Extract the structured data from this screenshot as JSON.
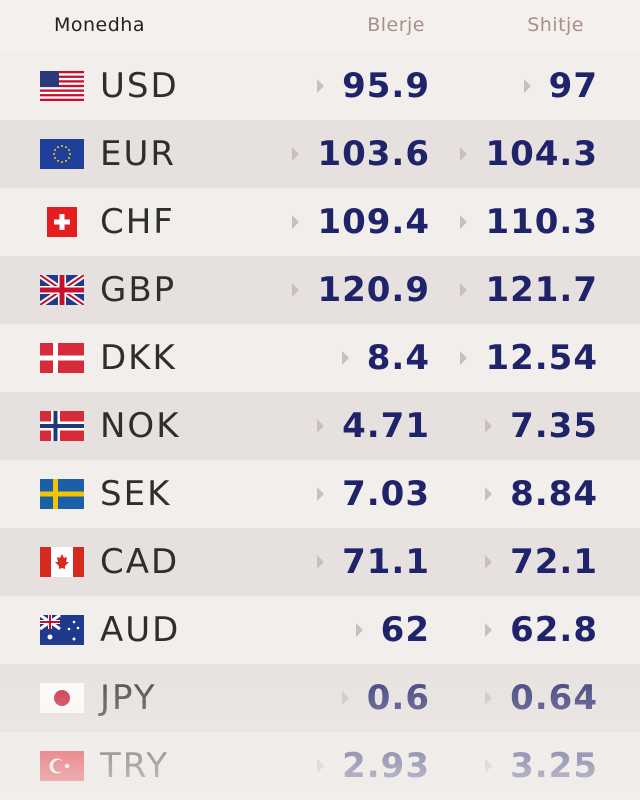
{
  "header": {
    "currency": "Monedha",
    "buy": "Blerje",
    "sell": "Shitje"
  },
  "rows": [
    [
      "USD",
      "95.9",
      "97"
    ],
    [
      "EUR",
      "103.6",
      "104.3"
    ],
    [
      "CHF",
      "109.4",
      "110.3"
    ],
    [
      "GBP",
      "120.9",
      "121.7"
    ],
    [
      "DKK",
      "8.4",
      "12.54"
    ],
    [
      "NOK",
      "4.71",
      "7.35"
    ],
    [
      "SEK",
      "7.03",
      "8.84"
    ],
    [
      "CAD",
      "71.1",
      "72.1"
    ],
    [
      "AUD",
      "62",
      "62.8"
    ],
    [
      "JPY",
      "0.6",
      "0.64"
    ],
    [
      "TRY",
      "2.93",
      "3.25"
    ]
  ]
}
